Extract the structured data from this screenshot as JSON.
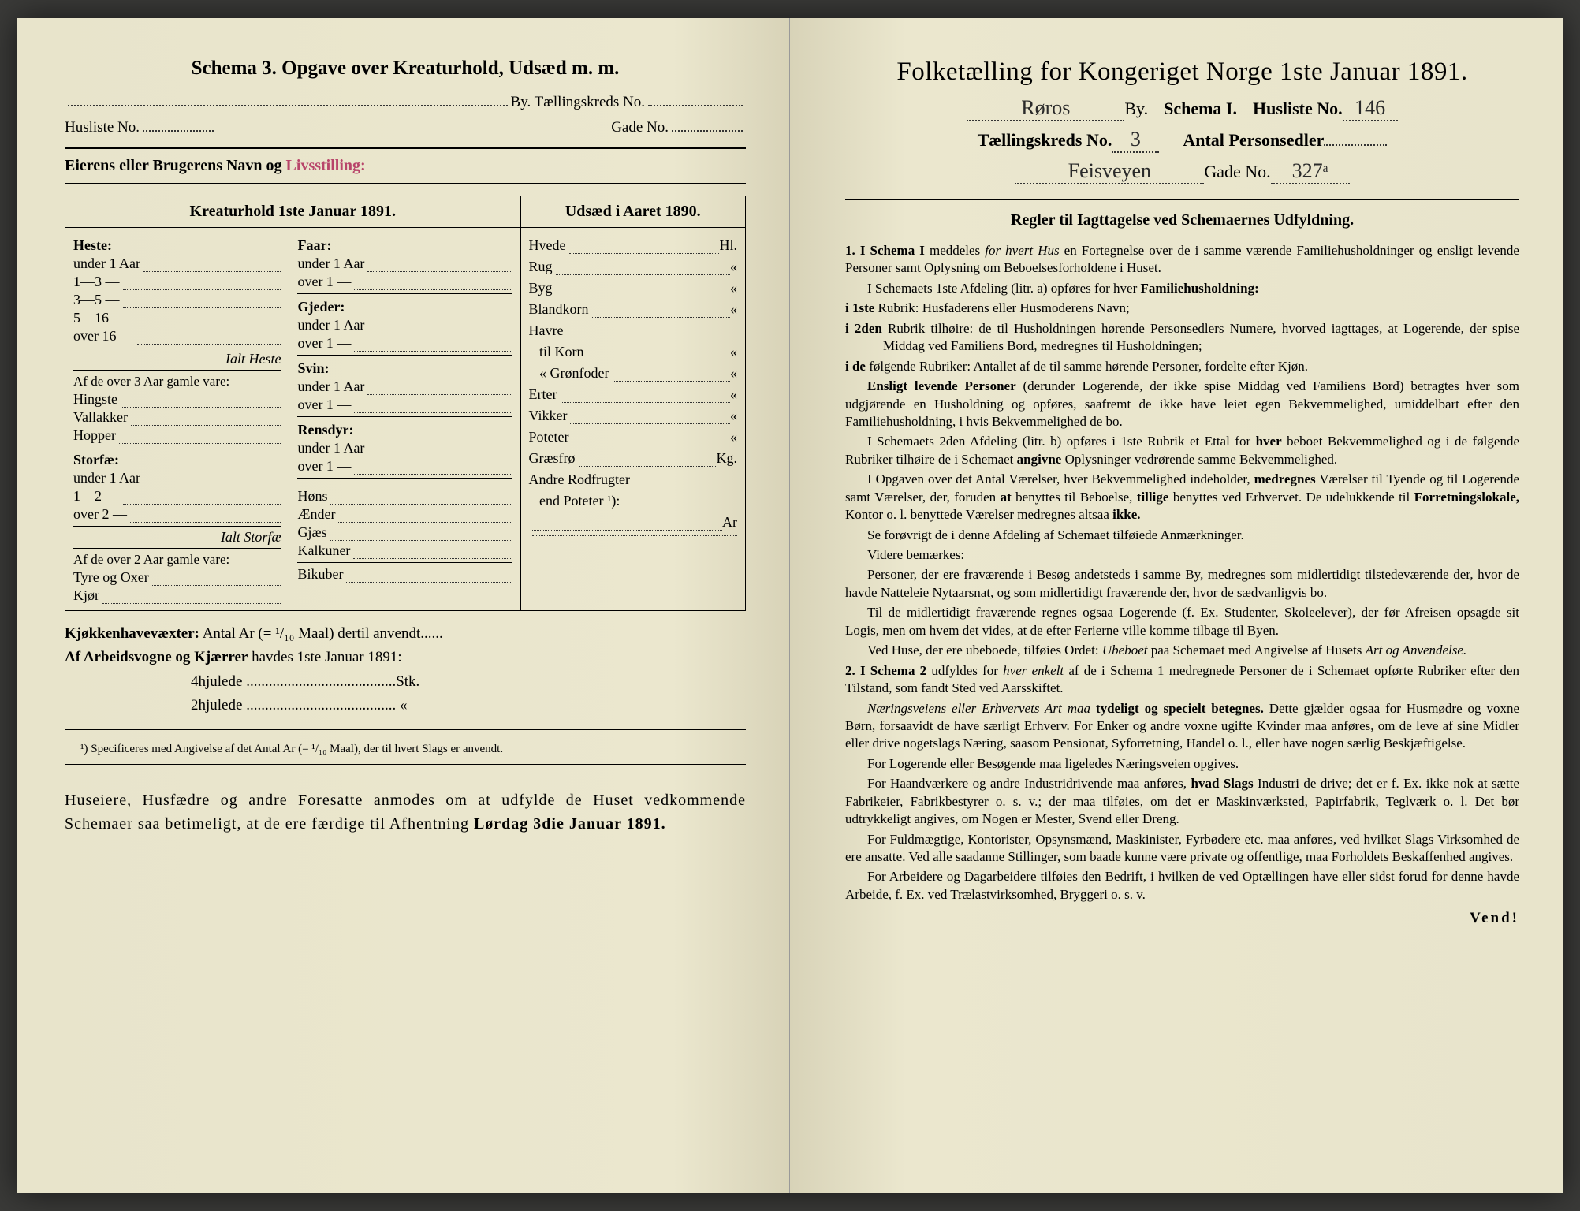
{
  "colors": {
    "paper": "#e8e4cb",
    "paper_shadow": "#d8d3b8",
    "ink": "#1a1a1a",
    "stamp": "#b8456a",
    "background": "#3a3a38"
  },
  "left": {
    "title": "Schema 3.  Opgave over Kreaturhold, Udsæd m. m.",
    "by_label": "By.  Tællingskreds No.",
    "husliste_label": "Husliste No.",
    "gade_label": "Gade No.",
    "owner_label": "Eierens eller Brugerens Navn og",
    "owner_stamp": "Livsstilling:",
    "table_header_left": "Kreaturhold 1ste Januar 1891.",
    "table_header_right": "Udsæd i Aaret 1890.",
    "col1": {
      "heste": "Heste:",
      "heste_items": [
        "under 1 Aar",
        "1—3   —",
        "3—5   —",
        "5—16  —",
        "over 16 —"
      ],
      "ialt_heste": "Ialt Heste",
      "over3": "Af de over 3 Aar gamle vare:",
      "over3_items": [
        "Hingste",
        "Vallakker",
        "Hopper"
      ],
      "storfae": "Storfæ:",
      "storfae_items": [
        "under 1 Aar",
        "1—2   —",
        "over 2  —"
      ],
      "ialt_storfae": "Ialt Storfæ",
      "over2": "Af de over 2 Aar gamle vare:",
      "over2_items": [
        "Tyre og Oxer",
        "Kjør"
      ]
    },
    "col2": {
      "faar": "Faar:",
      "faar_items": [
        "under 1 Aar",
        "over 1  —"
      ],
      "gjeder": "Gjeder:",
      "gjeder_items": [
        "under 1 Aar",
        "over 1  —"
      ],
      "svin": "Svin:",
      "svin_items": [
        "under 1 Aar",
        "over 1  —"
      ],
      "rensdyr": "Rensdyr:",
      "rensdyr_items": [
        "under 1 Aar",
        "over 1  —"
      ],
      "poultry": [
        "Høns",
        "Ænder",
        "Gjæs",
        "Kalkuner"
      ],
      "bikuber": "Bikuber"
    },
    "col3": {
      "items": [
        {
          "name": "Hvede",
          "unit": "Hl."
        },
        {
          "name": "Rug",
          "unit": "«"
        },
        {
          "name": "Byg",
          "unit": "«"
        },
        {
          "name": "Blandkorn",
          "unit": "«"
        },
        {
          "name": "Havre",
          "unit": ""
        },
        {
          "name": "   til Korn",
          "unit": "«"
        },
        {
          "name": "   « Grønfoder",
          "unit": "«"
        },
        {
          "name": "Erter",
          "unit": "«"
        },
        {
          "name": "Vikker",
          "unit": "«"
        },
        {
          "name": "Poteter",
          "unit": "«"
        },
        {
          "name": "Græsfrø",
          "unit": "Kg."
        },
        {
          "name": "Andre Rodfrugter",
          "unit": ""
        },
        {
          "name": "   end Poteter ¹):",
          "unit": ""
        },
        {
          "name": "",
          "unit": "Ar"
        }
      ]
    },
    "kjokken": "Kjøkkenhavevæxter:",
    "kjokken_text": "Antal Ar (= ¹/₁₀ Maal) dertil anvendt",
    "arbeids": "Af Arbeidsvogne og Kjærrer",
    "arbeids_text": "havdes 1ste Januar 1891:",
    "hjul4": "4hjulede",
    "hjul4_unit": "Stk.",
    "hjul2": "2hjulede",
    "hjul2_unit": "«",
    "footnote": "¹) Specificeres med Angivelse af det Antal Ar (= ¹/₁₀ Maal), der til hvert Slags er anvendt.",
    "closing": "Huseiere, Husfædre og andre Foresatte anmodes om at udfylde de Huset vedkommende Schemaer saa betimeligt, at de ere færdige til Afhentning Lørdag 3die Januar 1891.",
    "closing_bold": "Lørdag 3die Januar 1891."
  },
  "right": {
    "title": "Folketælling for Kongeriget Norge 1ste Januar 1891.",
    "by_value": "Røros",
    "by_label": "By.",
    "schema_label": "Schema I.",
    "husliste_label": "Husliste No.",
    "husliste_value": "146",
    "kreds_label": "Tællingskreds No.",
    "kreds_value": "3",
    "antal_label": "Antal Personsedler",
    "gade_value": "Feisveyen",
    "gade_label": "Gade No.",
    "gade_no_value": "327ᵃ",
    "rules_title": "Regler til Iagttagelse ved Schemaernes Udfyldning.",
    "rules": [
      "<b>1. I Schema I</b> meddeles <i>for hvert Hus</i> en Fortegnelse over de i samme værende Familiehusholdninger og ensligt levende Personer samt Oplysning om Beboelsesforholdene i Huset.",
      "I Schemaets 1ste Afdeling (litr. a) opføres for hver <b>Familiehusholdning:</b>",
      "<b>i 1ste</b> Rubrik: Husfaderens eller Husmoderens Navn;",
      "<b>i 2den</b> Rubrik tilhøire: de til Husholdningen hørende Personsedlers Numere, hvorved iagttages, at Logerende, der spise Middag ved Familiens Bord, medregnes til Husholdningen;",
      "<b>i de</b> følgende Rubriker: Antallet af de til samme hørende Personer, fordelte efter Kjøn.",
      "<b>Ensligt levende Personer</b> (derunder Logerende, der ikke spise Middag ved Familiens Bord) betragtes hver som udgjørende en Husholdning og opføres, saafremt de ikke have leiet egen Bekvemmelighed, umiddelbart efter den Familiehusholdning, i hvis Bekvemmelighed de bo.",
      "I Schemaets 2den Afdeling (litr. b) opføres i 1ste Rubrik et Ettal for <b>hver</b> beboet Bekvemmelighed og i de følgende Rubriker tilhøire de i Schemaet <b>angivne</b> Oplysninger vedrørende samme Bekvemmelighed.",
      "I Opgaven over det Antal Værelser, hver Bekvemmelighed indeholder, <b>medregnes</b> Værelser til Tyende og til Logerende samt Værelser, der, foruden <b>at</b> benyttes til Beboelse, <b>tillige</b> benyttes ved Erhvervet. De udelukkende til <b>Forretningslokale,</b> Kontor o. l. benyttede Værelser medregnes altsaa <b>ikke.</b>",
      "Se forøvrigt de i denne Afdeling af Schemaet tilføiede Anmærkninger.",
      "Videre bemærkes:",
      "Personer, der ere fraværende i Besøg andetsteds i samme By, medregnes som midlertidigt tilstedeværende der, hvor de havde Natteleie Nytaarsnat, og som midlertidigt fraværende der, hvor de sædvanligvis bo.",
      "Til de midlertidigt fraværende regnes ogsaa Logerende (f. Ex. Studenter, Skoleelever), der før Afreisen opsagde sit Logis, men om hvem det vides, at de efter Ferierne ville komme tilbage til Byen.",
      "Ved Huse, der ere ubeboede, tilføies Ordet: <i>Ubeboet</i> paa Schemaet med Angivelse af Husets <i>Art og Anvendelse.</i>",
      "<b>2. I Schema 2</b> udfyldes for <i>hver enkelt</i> af de i Schema 1 medregnede Personer de i Schemaet opførte Rubriker efter den Tilstand, som fandt Sted ved Aarsskiftet.",
      "<i>Næringsveiens eller Erhvervets Art maa</i> <b>tydeligt og specielt betegnes.</b> Dette gjælder ogsaa for Husmødre og voxne Børn, forsaavidt de have særligt Erhverv. For Enker og andre voxne ugifte Kvinder maa anføres, om de leve af sine Midler eller drive nogetslags Næring, saasom Pensionat, Syforretning, Handel o. l., eller have nogen særlig Beskjæftigelse.",
      "For Logerende eller Besøgende maa ligeledes Næringsveien opgives.",
      "For Haandværkere og andre Industridrivende maa anføres, <b>hvad Slags</b> Industri de drive; det er f. Ex. ikke nok at sætte Fabrikeier, Fabrikbestyrer o. s. v.; der maa tilføies, om det er Maskinværksted, Papirfabrik, Teglværk o. l. Det bør udtrykkeligt angives, om Nogen er Mester, Svend eller Dreng.",
      "For Fuldmægtige, Kontorister, Opsynsmænd, Maskinister, Fyrbødere etc. maa anføres, ved hvilket Slags Virksomhed de ere ansatte. Ved alle saadanne Stillinger, som baade kunne være private og offentlige, maa Forholdets Beskaffenhed angives.",
      "For Arbeidere og Dagarbeidere tilføies den Bedrift, i hvilken de ved Optællingen have eller sidst forud for denne havde Arbeide, f. Ex. ved Trælastvirksomhed, Bryggeri o. s. v."
    ],
    "vend": "Vend!"
  }
}
